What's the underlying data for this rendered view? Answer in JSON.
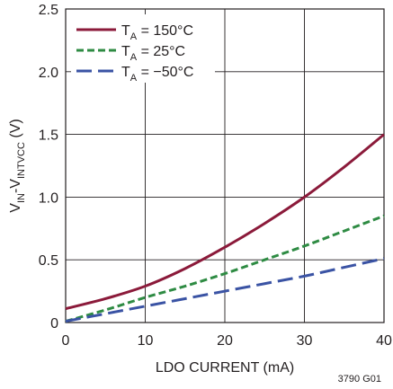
{
  "chart_data": {
    "type": "line",
    "xlabel": "LDO CURRENT (mA)",
    "ylabel": {
      "parts": [
        {
          "text": "V",
          "sub": false
        },
        {
          "text": "IN",
          "sub": true
        },
        {
          "text": "-V",
          "sub": false
        },
        {
          "text": "INTVCC",
          "sub": true
        },
        {
          "text": " (V)",
          "sub": false
        }
      ]
    },
    "xlim": [
      0,
      40
    ],
    "ylim": [
      0,
      2.5
    ],
    "xticks": [
      {
        "value": 0,
        "label": "0"
      },
      {
        "value": 10,
        "label": "10"
      },
      {
        "value": 20,
        "label": "20"
      },
      {
        "value": 30,
        "label": "30"
      },
      {
        "value": 40,
        "label": "40"
      }
    ],
    "yticks": [
      {
        "value": 0,
        "label": "0"
      },
      {
        "value": 0.5,
        "label": "0.5"
      },
      {
        "value": 1.0,
        "label": "1.0"
      },
      {
        "value": 1.5,
        "label": "1.5"
      },
      {
        "value": 2.0,
        "label": "2.0"
      },
      {
        "value": 2.5,
        "label": "2.5"
      }
    ],
    "grid": true,
    "legend_position": "top-left",
    "figure_id": "3790 G01",
    "series": [
      {
        "name": {
          "main": "T",
          "sub": "A",
          "rest": " = 150°C"
        },
        "color": "#8b1a3a",
        "dash": "solid",
        "x": [
          0,
          5,
          10,
          15,
          20,
          25,
          30,
          35,
          40
        ],
        "y": [
          0.11,
          0.19,
          0.29,
          0.43,
          0.6,
          0.79,
          1.0,
          1.24,
          1.5
        ]
      },
      {
        "name": {
          "main": "T",
          "sub": "A",
          "rest": " = 25°C"
        },
        "color": "#2e8b43",
        "dash": "short",
        "x": [
          0,
          5,
          10,
          15,
          20,
          25,
          30,
          35,
          40
        ],
        "y": [
          0.01,
          0.1,
          0.2,
          0.29,
          0.39,
          0.5,
          0.61,
          0.73,
          0.85
        ]
      },
      {
        "name": {
          "main": "T",
          "sub": "A",
          "rest": " = −50°C"
        },
        "color": "#3a53a4",
        "dash": "long",
        "x": [
          0,
          5,
          10,
          15,
          20,
          25,
          30,
          35,
          40
        ],
        "y": [
          0.01,
          0.07,
          0.13,
          0.19,
          0.25,
          0.31,
          0.37,
          0.44,
          0.51
        ]
      }
    ]
  }
}
